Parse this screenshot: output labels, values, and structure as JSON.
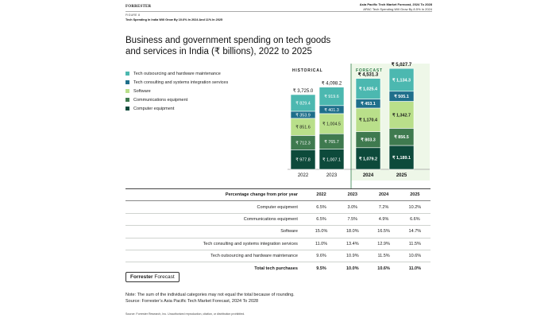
{
  "header": {
    "logo": "FORRESTER",
    "report_title": "Asia Pacific Tech Market Forecast, 2024 To 2028",
    "report_subtitle": "APAC Tech Spending Will Grow By 8.5% In 2024"
  },
  "figure": {
    "label": "FIGURE 8",
    "subtitle": "Tech Spending In India Will Grow By 10.6% In 2024 And 11% In 2025",
    "title": "Business and government spending on tech goods and services in India (₹ billions), 2022 to 2025"
  },
  "chart_data": {
    "type": "bar",
    "stacked": true,
    "categories": [
      "2022",
      "2023",
      "2024",
      "2025"
    ],
    "period_labels": {
      "historical": "HISTORICAL",
      "forecast": "FORECAST"
    },
    "historical_categories": [
      "2022",
      "2023"
    ],
    "forecast_categories": [
      "2024",
      "2025"
    ],
    "series": [
      {
        "name": "Computer equipment",
        "color": "#0d4a3b",
        "values": [
          977.8,
          1007.1,
          1079.2,
          1189.1
        ],
        "labels": [
          "₹ 977.8",
          "₹ 1,007.1",
          "₹ 1,079.2",
          "₹ 1,189.1"
        ]
      },
      {
        "name": "Communications equipment",
        "color": "#3f7a4f",
        "values": [
          712.3,
          765.7,
          803.3,
          856.5
        ],
        "labels": [
          "₹ 712.3",
          "₹ 765.7",
          "₹ 803.3",
          "₹ 856.5"
        ]
      },
      {
        "name": "Software",
        "color": "#b9df8a",
        "values": [
          851.6,
          1004.5,
          1170.4,
          1342.7
        ],
        "labels": [
          "₹ 851.6",
          "₹ 1,004.5",
          "₹ 1,170.4",
          "₹ 1,342.7"
        ]
      },
      {
        "name": "Tech consulting and systems integration services",
        "color": "#1f6f8b",
        "values": [
          353.9,
          401.3,
          453.1,
          505.1
        ],
        "labels": [
          "₹ 353.9",
          "₹ 401.3",
          "₹ 453.1",
          "₹ 505.1"
        ]
      },
      {
        "name": "Tech outsourcing and hardware maintenance",
        "color": "#4cb8b0",
        "values": [
          829.4,
          919.6,
          1025.4,
          1134.3
        ],
        "labels": [
          "₹ 829.4",
          "₹ 919.6",
          "₹ 1,025.4",
          "₹ 1,134.3"
        ]
      }
    ],
    "totals": [
      3725.0,
      4098.2,
      4531.3,
      5027.7
    ],
    "total_labels": [
      "₹ 3,725.0",
      "₹ 4,098.2",
      "₹ 4,531.3",
      "₹ 5,027.7"
    ],
    "legend_order": [
      "Tech outsourcing and hardware maintenance",
      "Tech consulting and systems integration services",
      "Software",
      "Communications equipment",
      "Computer equipment"
    ],
    "forecast_shade_color": "#eef7e8",
    "forecast_accent_color": "#2f7d4a",
    "ylim": [
      0,
      5100
    ],
    "legend_position": "left"
  },
  "growth_table": {
    "header_label": "Percentage change from prior year",
    "years": [
      "2022",
      "2023",
      "2024",
      "2025"
    ],
    "rows": [
      {
        "label": "Computer equipment",
        "values": [
          "6.5%",
          "3.0%",
          "7.2%",
          "10.2%"
        ]
      },
      {
        "label": "Communications equipment",
        "values": [
          "6.5%",
          "7.5%",
          "4.9%",
          "6.6%"
        ]
      },
      {
        "label": "Software",
        "values": [
          "15.0%",
          "18.0%",
          "16.5%",
          "14.7%"
        ]
      },
      {
        "label": "Tech consulting and systems integration services",
        "values": [
          "11.0%",
          "13.4%",
          "12.9%",
          "11.5%"
        ]
      },
      {
        "label": "Tech outsourcing and hardware maintenance",
        "values": [
          "9.6%",
          "10.9%",
          "11.5%",
          "10.6%"
        ]
      }
    ],
    "total": {
      "label": "Total tech purchases",
      "values": [
        "9.5%",
        "10.0%",
        "10.6%",
        "11.0%"
      ]
    }
  },
  "brand_box": {
    "brand": "Forrester",
    "product": "Forecast"
  },
  "note": {
    "line1": "Note: The sum of the individual categories may not equal the total because of rounding.",
    "line2": "Source: Forrester’s Asia Pacific Tech Market Forecast, 2024 To 2028"
  },
  "source_footer": "Source: Forrester Research, Inc. Unauthorized reproduction, citation, or distribution prohibited."
}
